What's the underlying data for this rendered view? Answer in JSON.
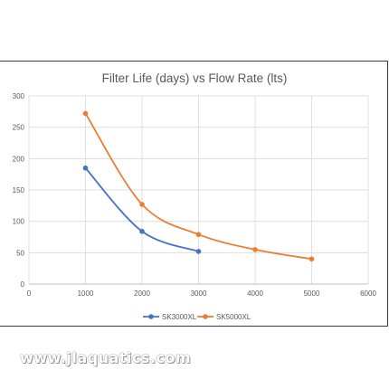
{
  "chart_data": {
    "type": "line",
    "title": "Filter Life (days) vs Flow Rate (lts)",
    "xlabel": "",
    "ylabel": "",
    "xlim": [
      0,
      6000
    ],
    "ylim": [
      0,
      300
    ],
    "x_ticks": [
      "0",
      "1000",
      "2000",
      "3000",
      "4000",
      "5000",
      "6000"
    ],
    "y_ticks": [
      "0",
      "50",
      "100",
      "150",
      "200",
      "250",
      "300"
    ],
    "grid": true,
    "legend_position": "bottom",
    "series": [
      {
        "name": "SK3000XL",
        "color": "#4472c4",
        "x": [
          1000,
          2000,
          3000
        ],
        "y": [
          185,
          84,
          52
        ]
      },
      {
        "name": "SK5000XL",
        "color": "#ed7d31",
        "x": [
          1000,
          2000,
          3000,
          4000,
          5000
        ],
        "y": [
          272,
          127,
          79,
          55,
          40
        ]
      }
    ]
  },
  "watermark": {
    "text": "www.jlaquatics.com"
  }
}
